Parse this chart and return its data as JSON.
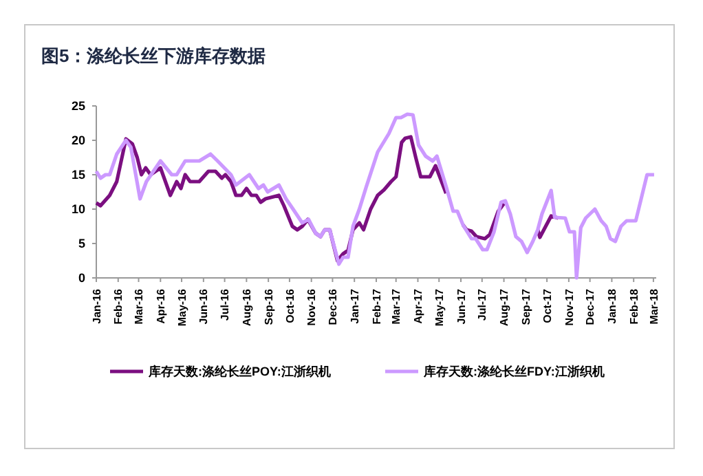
{
  "chart_data": {
    "type": "line",
    "title": "图5：涤纶长丝下游库存数据",
    "xlim": [
      "2016-01-01",
      "2018-03-05"
    ],
    "xticks": [
      {
        "value": "2016-01-01",
        "label": "Jan-16"
      },
      {
        "value": "2016-02-01",
        "label": "Feb-16"
      },
      {
        "value": "2016-03-01",
        "label": "Mar-16"
      },
      {
        "value": "2016-04-01",
        "label": "Apr-16"
      },
      {
        "value": "2016-05-01",
        "label": "May-16"
      },
      {
        "value": "2016-06-01",
        "label": "Jun-16"
      },
      {
        "value": "2016-07-01",
        "label": "Jul-16"
      },
      {
        "value": "2016-08-01",
        "label": "Aug-16"
      },
      {
        "value": "2016-09-01",
        "label": "Sep-16"
      },
      {
        "value": "2016-10-01",
        "label": "Oct-16"
      },
      {
        "value": "2016-11-01",
        "label": "Nov-16"
      },
      {
        "value": "2016-12-01",
        "label": "Dec-16"
      },
      {
        "value": "2017-01-01",
        "label": "Jan-17"
      },
      {
        "value": "2017-02-01",
        "label": "Feb-17"
      },
      {
        "value": "2017-03-01",
        "label": "Mar-17"
      },
      {
        "value": "2017-04-01",
        "label": "Apr-17"
      },
      {
        "value": "2017-05-01",
        "label": "May-17"
      },
      {
        "value": "2017-06-01",
        "label": "Jun-17"
      },
      {
        "value": "2017-07-01",
        "label": "Jul-17"
      },
      {
        "value": "2017-08-01",
        "label": "Aug-17"
      },
      {
        "value": "2017-09-01",
        "label": "Sep-17"
      },
      {
        "value": "2017-10-01",
        "label": "Oct-17"
      },
      {
        "value": "2017-11-01",
        "label": "Nov-17"
      },
      {
        "value": "2017-12-01",
        "label": "Dec-17"
      },
      {
        "value": "2018-01-01",
        "label": "Jan-18"
      },
      {
        "value": "2018-02-01",
        "label": "Feb-18"
      },
      {
        "value": "2018-03-01",
        "label": "Mar-18"
      }
    ],
    "ylim": [
      0,
      25
    ],
    "yticks": [
      0,
      5,
      10,
      15,
      20,
      25
    ],
    "grid": false,
    "legend": "bottom",
    "series": [
      {
        "name": "库存天数:涤纶长丝POY:江浙织机",
        "color": "#7b0f80",
        "x": [
          "2016-01-01",
          "2016-01-07",
          "2016-01-20",
          "2016-01-30",
          "2016-02-12",
          "2016-02-21",
          "2016-02-28",
          "2016-03-05",
          "2016-03-11",
          "2016-03-18",
          "2016-04-01",
          "2016-04-15",
          "2016-04-24",
          "2016-04-30",
          "2016-05-06",
          "2016-05-13",
          "2016-05-26",
          "2016-06-08",
          "2016-06-18",
          "2016-06-27",
          "2016-07-02",
          "2016-07-10",
          "2016-07-17",
          "2016-07-25",
          "2016-08-01",
          "2016-08-08",
          "2016-08-15",
          "2016-08-21",
          "2016-08-28",
          "2016-09-16",
          "2016-09-23",
          "2016-10-05",
          "2016-10-12",
          "2016-10-19",
          "2016-10-27",
          "2016-11-07",
          "2016-11-14",
          "2016-11-20",
          "2016-11-27",
          "2016-12-08",
          "2016-12-16",
          "2016-12-23",
          "2016-12-30",
          "2017-01-08",
          "2017-01-14",
          "2017-01-24",
          "2017-02-03",
          "2017-02-12",
          "2017-02-22",
          "2017-03-01",
          "2017-03-09",
          "2017-03-14",
          "2017-03-22",
          "2017-03-29",
          "2017-04-05",
          "2017-04-18",
          "2017-04-26",
          "2017-05-11",
          "2017-05-25",
          "2017-06-04",
          "2017-06-09",
          "2017-06-16",
          "2017-06-23",
          "2017-07-05",
          "2017-07-12",
          "2017-07-24",
          "2017-08-01",
          "2017-09-01",
          "2017-09-18",
          "2017-09-21",
          "2017-10-07",
          "2017-10-17"
        ],
        "values": [
          10.9,
          10.5,
          12,
          14,
          20.2,
          19.5,
          17.5,
          15,
          16,
          15,
          16,
          12,
          14,
          13,
          15,
          14,
          14,
          15.5,
          15.5,
          14.5,
          15,
          14,
          12,
          12,
          13,
          12,
          12,
          11,
          11.5,
          12,
          10.5,
          7.5,
          7,
          7.5,
          8.5,
          6.5,
          6,
          7,
          7,
          2.5,
          3.5,
          4,
          7,
          8,
          7,
          10,
          12,
          12.8,
          14,
          14.7,
          19.7,
          20.3,
          20.5,
          17.5,
          14.7,
          14.7,
          16.3,
          12.3,
          null,
          7.7,
          7,
          6.8,
          6,
          5.7,
          6.3,
          9.7,
          10.8,
          null,
          7,
          5.9,
          9,
          8.7
        ]
      },
      {
        "name": "库存天数:涤纶长丝FDY:江浙织机",
        "color": "#cc99ff",
        "x": [
          "2016-01-01",
          "2016-01-07",
          "2016-01-14",
          "2016-01-20",
          "2016-01-30",
          "2016-02-12",
          "2016-02-19",
          "2016-03-03",
          "2016-03-12",
          "2016-04-01",
          "2016-04-17",
          "2016-04-24",
          "2016-05-06",
          "2016-05-26",
          "2016-06-11",
          "2016-06-21",
          "2016-07-10",
          "2016-07-17",
          "2016-08-05",
          "2016-08-18",
          "2016-08-25",
          "2016-08-31",
          "2016-09-16",
          "2016-09-26",
          "2016-10-06",
          "2016-10-19",
          "2016-10-28",
          "2016-11-07",
          "2016-11-14",
          "2016-11-20",
          "2016-11-27",
          "2016-12-10",
          "2016-12-16",
          "2016-12-23",
          "2016-12-30",
          "2017-01-08",
          "2017-01-18",
          "2017-02-03",
          "2017-02-19",
          "2017-03-01",
          "2017-03-08",
          "2017-03-17",
          "2017-03-25",
          "2017-04-02",
          "2017-04-12",
          "2017-04-22",
          "2017-04-28",
          "2017-05-11",
          "2017-05-21",
          "2017-05-27",
          "2017-06-04",
          "2017-06-16",
          "2017-06-22",
          "2017-07-02",
          "2017-07-08",
          "2017-07-18",
          "2017-07-28",
          "2017-08-03",
          "2017-08-10",
          "2017-08-18",
          "2017-08-26",
          "2017-09-03",
          "2017-09-11",
          "2017-09-18",
          "2017-09-24",
          "2017-10-07",
          "2017-10-12",
          "2017-10-27",
          "2017-11-02",
          "2017-11-09",
          "2017-11-12",
          "2017-11-18",
          "2017-11-25",
          "2017-12-08",
          "2017-12-17",
          "2017-12-24",
          "2017-12-30",
          "2018-01-06",
          "2018-01-14",
          "2018-01-22",
          "2018-02-04",
          "2018-02-20",
          "2018-03-02"
        ],
        "values": [
          15.5,
          14.5,
          15,
          15,
          18,
          20,
          19,
          11.5,
          14,
          17,
          15,
          15,
          17,
          17,
          18,
          17,
          15,
          13.5,
          15,
          13,
          13.5,
          12.5,
          13.5,
          11.5,
          10,
          8,
          8.5,
          6.5,
          6,
          7,
          7,
          2,
          3,
          3,
          7.5,
          10,
          13.3,
          18.3,
          21,
          23.3,
          23.3,
          23.8,
          23.7,
          19.3,
          17.7,
          17,
          17.7,
          13.3,
          9.7,
          9.7,
          7.7,
          5.7,
          5.7,
          4.1,
          4.1,
          6.7,
          11,
          11.2,
          9.3,
          6,
          5.3,
          3.7,
          5.3,
          7,
          9.3,
          12.7,
          8.8,
          8.7,
          6.7,
          6.7,
          0,
          7.3,
          8.7,
          10,
          8.3,
          7.5,
          5.7,
          5.3,
          7.5,
          8.3,
          8.3,
          15,
          15
        ]
      }
    ]
  }
}
